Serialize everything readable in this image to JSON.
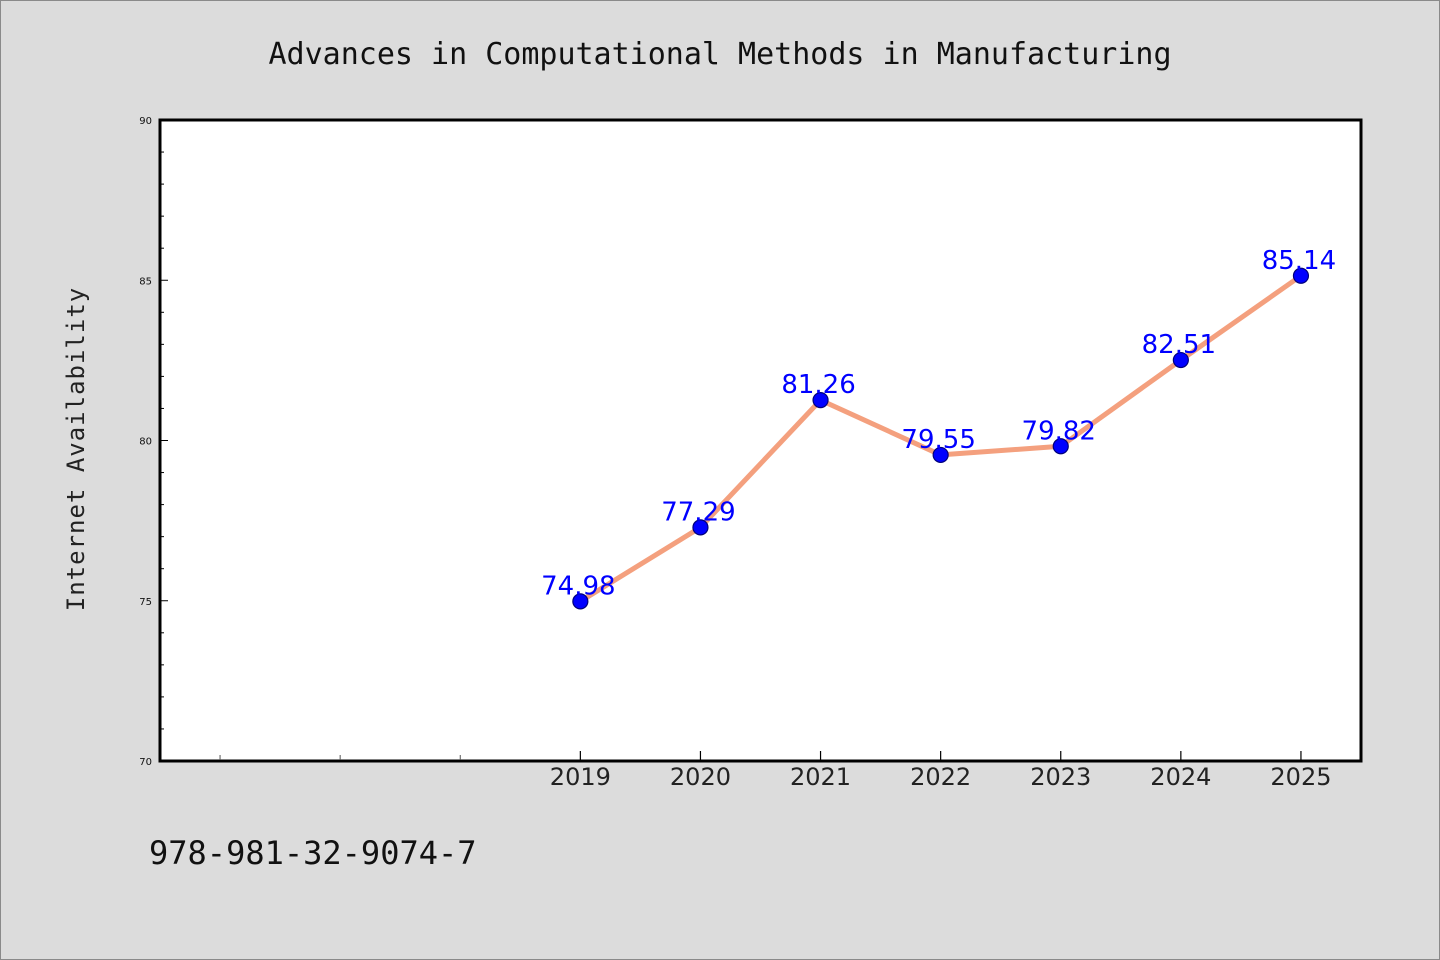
{
  "chart_data": {
    "type": "line",
    "title": "Advances in Computational Methods in Manufacturing",
    "xlabel": "",
    "ylabel": "Internet Availability",
    "x_range": [
      2015.5,
      2025.5
    ],
    "ylim": [
      70,
      90
    ],
    "yticks": [
      70,
      75,
      80,
      85,
      90
    ],
    "x_minor_ticks": [
      2016,
      2017,
      2018
    ],
    "categories": [
      "2019",
      "2020",
      "2021",
      "2022",
      "2023",
      "2024",
      "2025"
    ],
    "x": [
      2019,
      2020,
      2021,
      2022,
      2023,
      2024,
      2025
    ],
    "values": [
      74.98,
      77.29,
      81.26,
      79.55,
      79.82,
      82.51,
      85.14
    ],
    "data_labels": [
      "74.98",
      "77.29",
      "81.26",
      "79.55",
      "79.82",
      "82.51",
      "85.14"
    ],
    "grid": false,
    "legend": "none",
    "colors": {
      "line": "#f4a07e",
      "marker": "#0000ff",
      "data_label": "#0000ff",
      "page_background": "#dcdcdc",
      "plot_background": "#ffffff"
    }
  },
  "footer": {
    "isbn": "978-981-32-9074-7"
  }
}
